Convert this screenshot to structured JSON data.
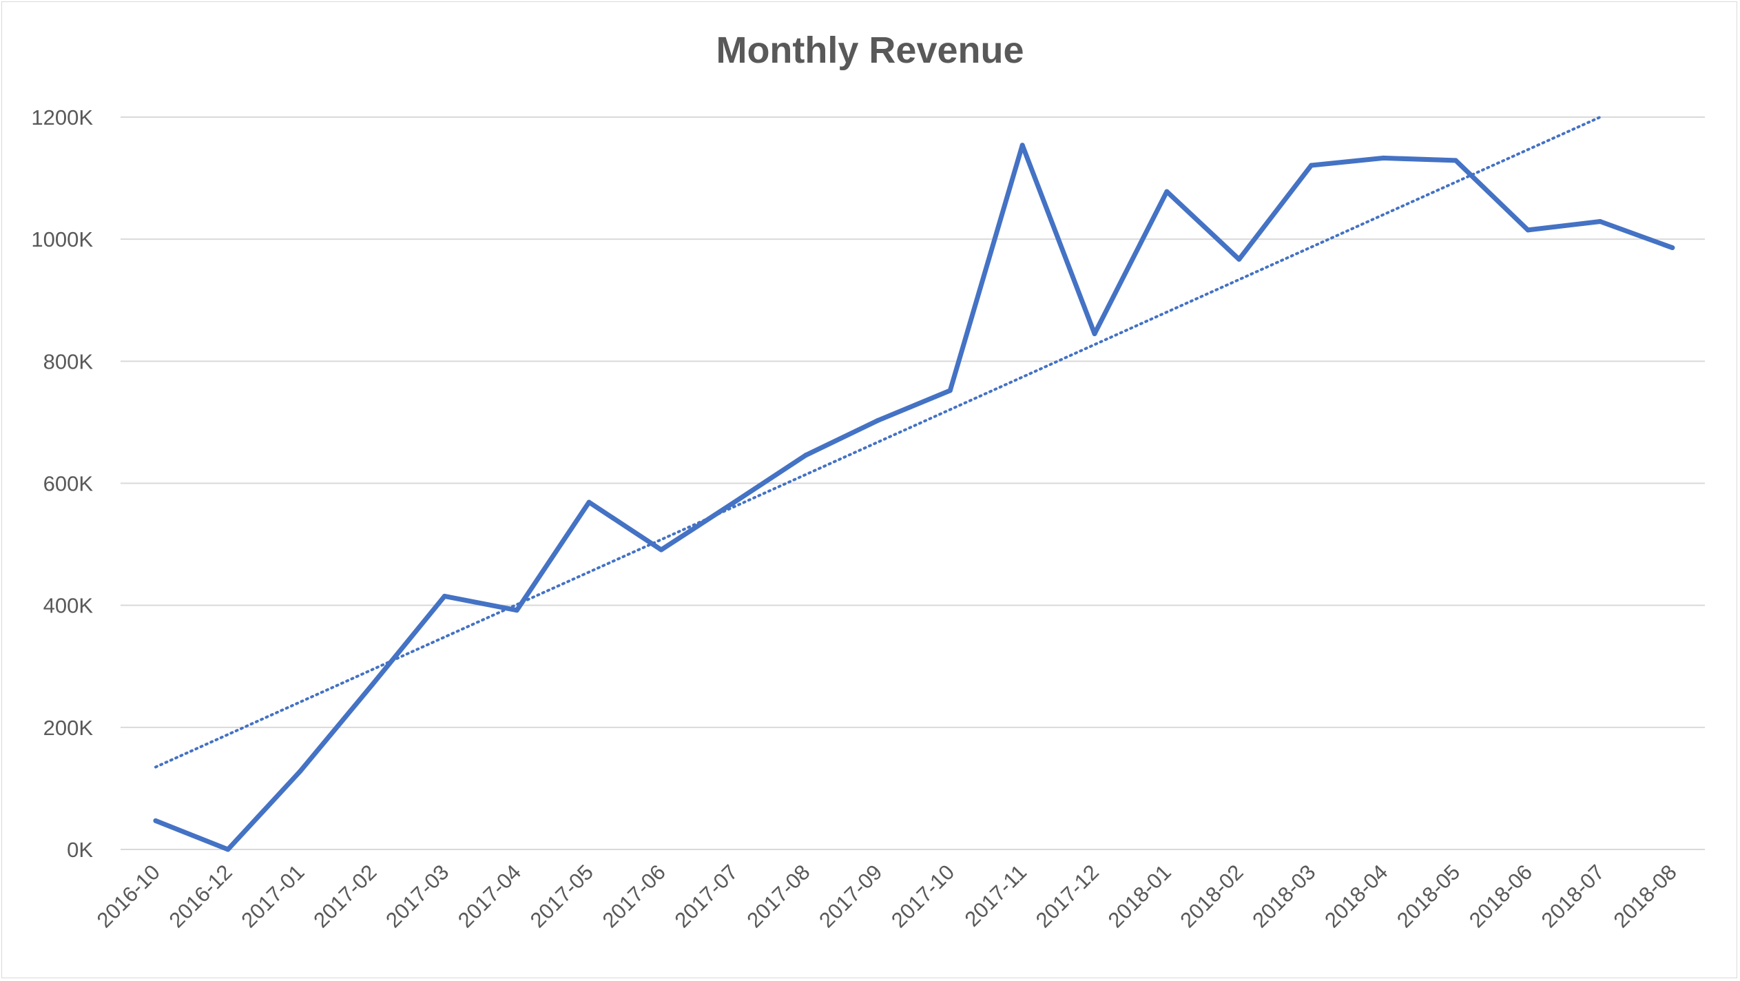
{
  "chart_data": {
    "type": "line",
    "title": "Monthly Revenue",
    "xlabel": "",
    "ylabel": "",
    "categories": [
      "2016-10",
      "2016-12",
      "2017-01",
      "2017-02",
      "2017-03",
      "2017-04",
      "2017-05",
      "2017-06",
      "2017-07",
      "2017-08",
      "2017-09",
      "2017-10",
      "2017-11",
      "2017-12",
      "2018-01",
      "2018-02",
      "2018-03",
      "2018-04",
      "2018-05",
      "2018-06",
      "2018-07",
      "2018-08"
    ],
    "series": [
      {
        "values": [
          47000,
          0,
          128000,
          270000,
          415000,
          392000,
          569000,
          491000,
          568000,
          646000,
          703000,
          752000,
          1154000,
          845000,
          1078000,
          967000,
          1121000,
          1133000,
          1129000,
          1015000,
          1029000,
          986000
        ],
        "color": "#4472c4",
        "style": "solid"
      }
    ],
    "trendline": {
      "type": "linear",
      "color": "#4472c4",
      "style": "dotted",
      "start": 135000,
      "end": 1200000,
      "end_category": "2018-07"
    },
    "ylim": [
      0,
      1200000
    ],
    "yticks": [
      "0K",
      "200K",
      "400K",
      "600K",
      "800K",
      "1000K",
      "1200K"
    ],
    "grid": true,
    "legend": "none"
  }
}
